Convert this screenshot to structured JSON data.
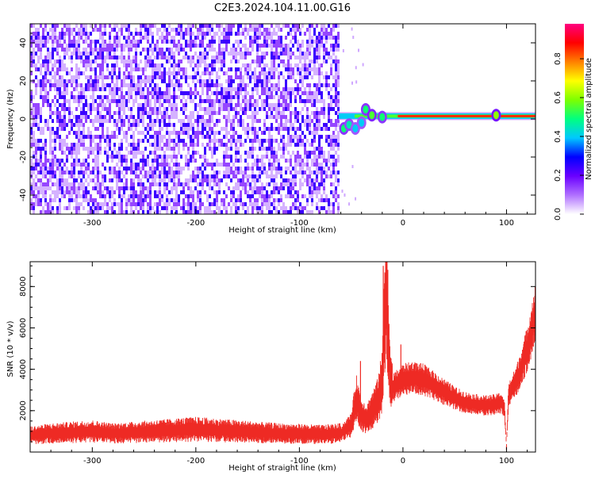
{
  "figure": {
    "title": "C2E3.2024.104.11.00.G16"
  },
  "colorbar": {
    "label": "Normalized spectral amplitude",
    "ticks": [
      "0.0",
      "0.2",
      "0.4",
      "0.6",
      "0.8"
    ],
    "tick_values": [
      0.0,
      0.2,
      0.4,
      0.6,
      0.8
    ],
    "range": [
      0,
      0.98
    ],
    "colormap": [
      "#ffffff",
      "#b070ff",
      "#6a00ff",
      "#0000ff",
      "#00c8ff",
      "#00ff80",
      "#7dff00",
      "#ffff00",
      "#ff8000",
      "#ff0000",
      "#ff0080"
    ]
  },
  "chart_data": [
    {
      "type": "heatmap",
      "xlabel": "Height of straight line (km)",
      "ylabel": "Frequency (Hz)",
      "xlim": [
        -360,
        128
      ],
      "ylim": [
        -50,
        50
      ],
      "x_ticks": [
        -300,
        -200,
        -100,
        0,
        100
      ],
      "x_tick_labels": [
        "-300",
        "-200",
        "-100",
        "0",
        "100"
      ],
      "y_ticks": [
        -40,
        -20,
        0,
        20,
        40
      ],
      "y_tick_labels": [
        "-40",
        "-20",
        "0",
        "20",
        "40"
      ],
      "noise_region_x": [
        -360,
        -62
      ],
      "noise_amplitude": 0.15,
      "signal_line": {
        "frequency": 1.5,
        "x_start": -62,
        "x_end": 128,
        "amplitude": 0.85
      },
      "signal_bursts": [
        {
          "x": -57,
          "y": -5,
          "amplitude": 0.5
        },
        {
          "x": -52,
          "y": -3,
          "amplitude": 0.45
        },
        {
          "x": -46,
          "y": -5,
          "amplitude": 0.4
        },
        {
          "x": -40,
          "y": -2,
          "amplitude": 0.4
        },
        {
          "x": -36,
          "y": 5,
          "amplitude": 0.5
        },
        {
          "x": -30,
          "y": 2,
          "amplitude": 0.55
        },
        {
          "x": -20,
          "y": 1,
          "amplitude": 0.5
        },
        {
          "x": 90,
          "y": 2,
          "amplitude": 0.6
        }
      ]
    },
    {
      "type": "line",
      "xlabel": "Height of straight line (km)",
      "ylabel": "SNR (10 * v/v)",
      "xlim": [
        -360,
        128
      ],
      "ylim": [
        0,
        9200
      ],
      "x_ticks": [
        -300,
        -200,
        -100,
        0,
        100
      ],
      "x_tick_labels": [
        "-300",
        "-200",
        "-100",
        "0",
        "100"
      ],
      "y_ticks": [
        2000,
        4000,
        6000,
        8000
      ],
      "y_tick_labels": [
        "2000",
        "4000",
        "6000",
        "8000"
      ],
      "series": [
        {
          "color": "#ee2a24",
          "x": [
            -360,
            -340,
            -320,
            -300,
            -280,
            -260,
            -240,
            -220,
            -200,
            -180,
            -160,
            -140,
            -120,
            -100,
            -80,
            -60,
            -50,
            -45,
            -40,
            -35,
            -30,
            -25,
            -20,
            -18,
            -16,
            -14,
            -12,
            -10,
            -5,
            0,
            10,
            20,
            30,
            40,
            50,
            60,
            70,
            80,
            90,
            95,
            98,
            100,
            102,
            105,
            110,
            115,
            120,
            128
          ],
          "y": [
            800,
            900,
            950,
            1000,
            900,
            950,
            1000,
            1050,
            1100,
            1050,
            1000,
            950,
            900,
            880,
            850,
            900,
            1300,
            2600,
            1800,
            1600,
            2000,
            2400,
            3400,
            6500,
            8400,
            5500,
            3200,
            3100,
            3300,
            3500,
            3600,
            3500,
            3200,
            2900,
            2600,
            2400,
            2300,
            2250,
            2300,
            2400,
            2100,
            300,
            2800,
            3000,
            3500,
            4200,
            5000,
            6700
          ],
          "max_spikes": [
            {
              "x": -19,
              "y": 9000
            },
            {
              "x": -15,
              "y": 8800
            },
            {
              "x": -41,
              "y": 4400
            },
            {
              "x": -2,
              "y": 5200
            },
            {
              "x": 100,
              "y": 100
            }
          ]
        }
      ]
    }
  ]
}
